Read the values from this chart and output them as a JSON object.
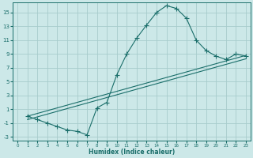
{
  "xlabel": "Humidex (Indice chaleur)",
  "background_color": "#cce8e8",
  "grid_color": "#b0d4d4",
  "line_color": "#1a6e6a",
  "xlim": [
    -0.5,
    23.5
  ],
  "ylim": [
    -3.5,
    16.5
  ],
  "xticks": [
    0,
    1,
    2,
    3,
    4,
    5,
    6,
    7,
    8,
    9,
    10,
    11,
    12,
    13,
    14,
    15,
    16,
    17,
    18,
    19,
    20,
    21,
    22,
    23
  ],
  "yticks": [
    -3,
    -1,
    1,
    3,
    5,
    7,
    9,
    11,
    13,
    15
  ],
  "line1_x": [
    1,
    2,
    3,
    4,
    5,
    6,
    7,
    8,
    9,
    10,
    11,
    12,
    13,
    14,
    15,
    16,
    17,
    18,
    19,
    20,
    21,
    22,
    23
  ],
  "line1_y": [
    0.0,
    -0.5,
    -1.0,
    -1.5,
    -2.0,
    -2.2,
    -2.7,
    1.2,
    2.0,
    6.0,
    9.0,
    11.3,
    13.2,
    15.0,
    16.0,
    15.6,
    14.2,
    11.0,
    9.5,
    8.7,
    8.2,
    9.0,
    8.7
  ],
  "line2_x": [
    1,
    23
  ],
  "line2_y": [
    0.0,
    8.8
  ],
  "line3_x": [
    1,
    23
  ],
  "line3_y": [
    -0.5,
    8.3
  ]
}
